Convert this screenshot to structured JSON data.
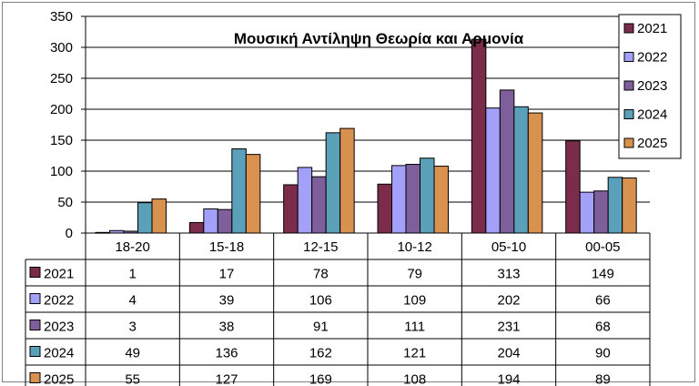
{
  "chart_data": {
    "type": "bar",
    "title": "Μουσική  Αντίληψη Θεωρία και Αρμονία",
    "categories": [
      "18-20",
      "15-18",
      "12-15",
      "10-12",
      "05-10",
      "00-05"
    ],
    "ylim": [
      0,
      350
    ],
    "yticks": [
      0,
      50,
      100,
      150,
      200,
      250,
      300,
      350
    ],
    "grid": true,
    "legend": "top-right",
    "data_table": true,
    "series": [
      {
        "name": "2021",
        "color": "#7B2C4A",
        "values": [
          1,
          17,
          78,
          79,
          313,
          149
        ]
      },
      {
        "name": "2022",
        "color": "#A2A0F8",
        "values": [
          4,
          39,
          106,
          109,
          202,
          66
        ]
      },
      {
        "name": "2023",
        "color": "#7E5F9C",
        "values": [
          3,
          38,
          91,
          111,
          231,
          68
        ]
      },
      {
        "name": "2024",
        "color": "#5AA0B8",
        "values": [
          49,
          136,
          162,
          121,
          204,
          90
        ]
      },
      {
        "name": "2025",
        "color": "#D99150",
        "values": [
          55,
          127,
          169,
          108,
          194,
          89
        ]
      }
    ]
  }
}
